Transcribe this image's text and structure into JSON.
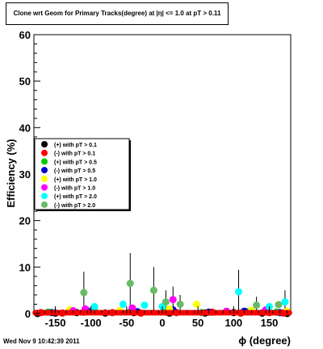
{
  "chart_data": {
    "type": "scatter",
    "title": "Clone wrt Geom for Primary Tracks(degree) at |η| <= 1.0 at pT > 0.11",
    "xlabel": "ϕ (degree)",
    "ylabel": "Efficiency (%)",
    "xlim": [
      -180,
      180
    ],
    "ylim": [
      0,
      60
    ],
    "x_ticks": [
      -150,
      -100,
      -50,
      0,
      50,
      100,
      150
    ],
    "y_ticks": [
      0,
      10,
      20,
      30,
      40,
      50,
      60
    ],
    "grid": false,
    "legend_position": "left-middle",
    "series": [
      {
        "name": "(+) with pT > 0.1",
        "color": "#000000",
        "points": [
          [
            -175,
            0
          ],
          [
            -150,
            0.1
          ],
          [
            -120,
            0.2
          ],
          [
            -80,
            0.1
          ],
          [
            -40,
            0.2
          ],
          [
            10,
            0.1
          ],
          [
            60,
            0.1
          ],
          [
            100,
            0.2
          ],
          [
            140,
            0.1
          ],
          [
            175,
            0
          ]
        ]
      },
      {
        "name": "(-) with pT > 0.1",
        "color": "#ff0000",
        "points": [
          [
            -170,
            0.2
          ],
          [
            -140,
            0.1
          ],
          [
            -110,
            0.3
          ],
          [
            -70,
            0.2
          ],
          [
            -30,
            0.1
          ],
          [
            20,
            0.2
          ],
          [
            70,
            0.3
          ],
          [
            110,
            0.1
          ],
          [
            150,
            0.2
          ],
          [
            170,
            0.1
          ]
        ]
      },
      {
        "name": "(+) with pT > 0.5",
        "color": "#00cc00",
        "points": [
          [
            -160,
            0.3
          ],
          [
            -95,
            0.5
          ],
          [
            -45,
            0.4
          ],
          [
            5,
            0.3
          ],
          [
            55,
            0.2
          ],
          [
            120,
            0.4
          ],
          [
            160,
            0.3
          ]
        ]
      },
      {
        "name": "(-) with pT > 0.5",
        "color": "#0000cc",
        "points": [
          [
            -155,
            0.2
          ],
          [
            -105,
            0.6
          ],
          [
            -35,
            0.4
          ],
          [
            15,
            0.8
          ],
          [
            65,
            0.3
          ],
          [
            115,
            0.5
          ],
          [
            165,
            0.2
          ]
        ]
      },
      {
        "name": "(+) with pT > 1.0",
        "color": "#ffff00",
        "points": [
          [
            -130,
            0.8
          ],
          [
            -60,
            0.6
          ],
          [
            10,
            1.0
          ],
          [
            48,
            2.0
          ],
          [
            125,
            0.7
          ],
          [
            175,
            0.5
          ]
        ]
      },
      {
        "name": "(-) with pT > 1.0",
        "color": "#ff00ff",
        "points": [
          [
            -125,
            0.6
          ],
          [
            -108,
            1.0
          ],
          [
            -42,
            1.2
          ],
          [
            15,
            3.0
          ],
          [
            90,
            0.5
          ],
          [
            145,
            0.8
          ]
        ]
      },
      {
        "name": "(+) with pT > 2.0",
        "color": "#00ffff",
        "points": [
          [
            -95,
            1.5
          ],
          [
            -55,
            2.0
          ],
          [
            -25,
            1.8
          ],
          [
            0,
            1.5
          ],
          [
            107,
            4.7
          ],
          [
            150,
            1.5
          ],
          [
            172,
            2.5
          ]
        ]
      },
      {
        "name": "(-) with pT > 2.0",
        "color": "#66bb66",
        "points": [
          [
            -110,
            4.5
          ],
          [
            -45,
            6.5
          ],
          [
            -12,
            5.0
          ],
          [
            5,
            2.5
          ],
          [
            25,
            2.0
          ],
          [
            132,
            1.8
          ],
          [
            163,
            1.9
          ]
        ]
      }
    ],
    "error_bars": [
      {
        "x": -110,
        "y": 4.5,
        "err": 4.5
      },
      {
        "x": -45,
        "y": 6.5,
        "err": 6.5
      },
      {
        "x": -12,
        "y": 5.0,
        "err": 5.0
      },
      {
        "x": 5,
        "y": 2.5,
        "err": 2.5
      },
      {
        "x": 15,
        "y": 3.0,
        "err": 2.8
      },
      {
        "x": 25,
        "y": 2.0,
        "err": 2.0
      },
      {
        "x": 107,
        "y": 4.7,
        "err": 4.7
      },
      {
        "x": 132,
        "y": 1.8,
        "err": 1.8
      },
      {
        "x": 172,
        "y": 2.5,
        "err": 2.5
      }
    ]
  },
  "footer_text": "Wed Nov  9 10:42:39 2011"
}
